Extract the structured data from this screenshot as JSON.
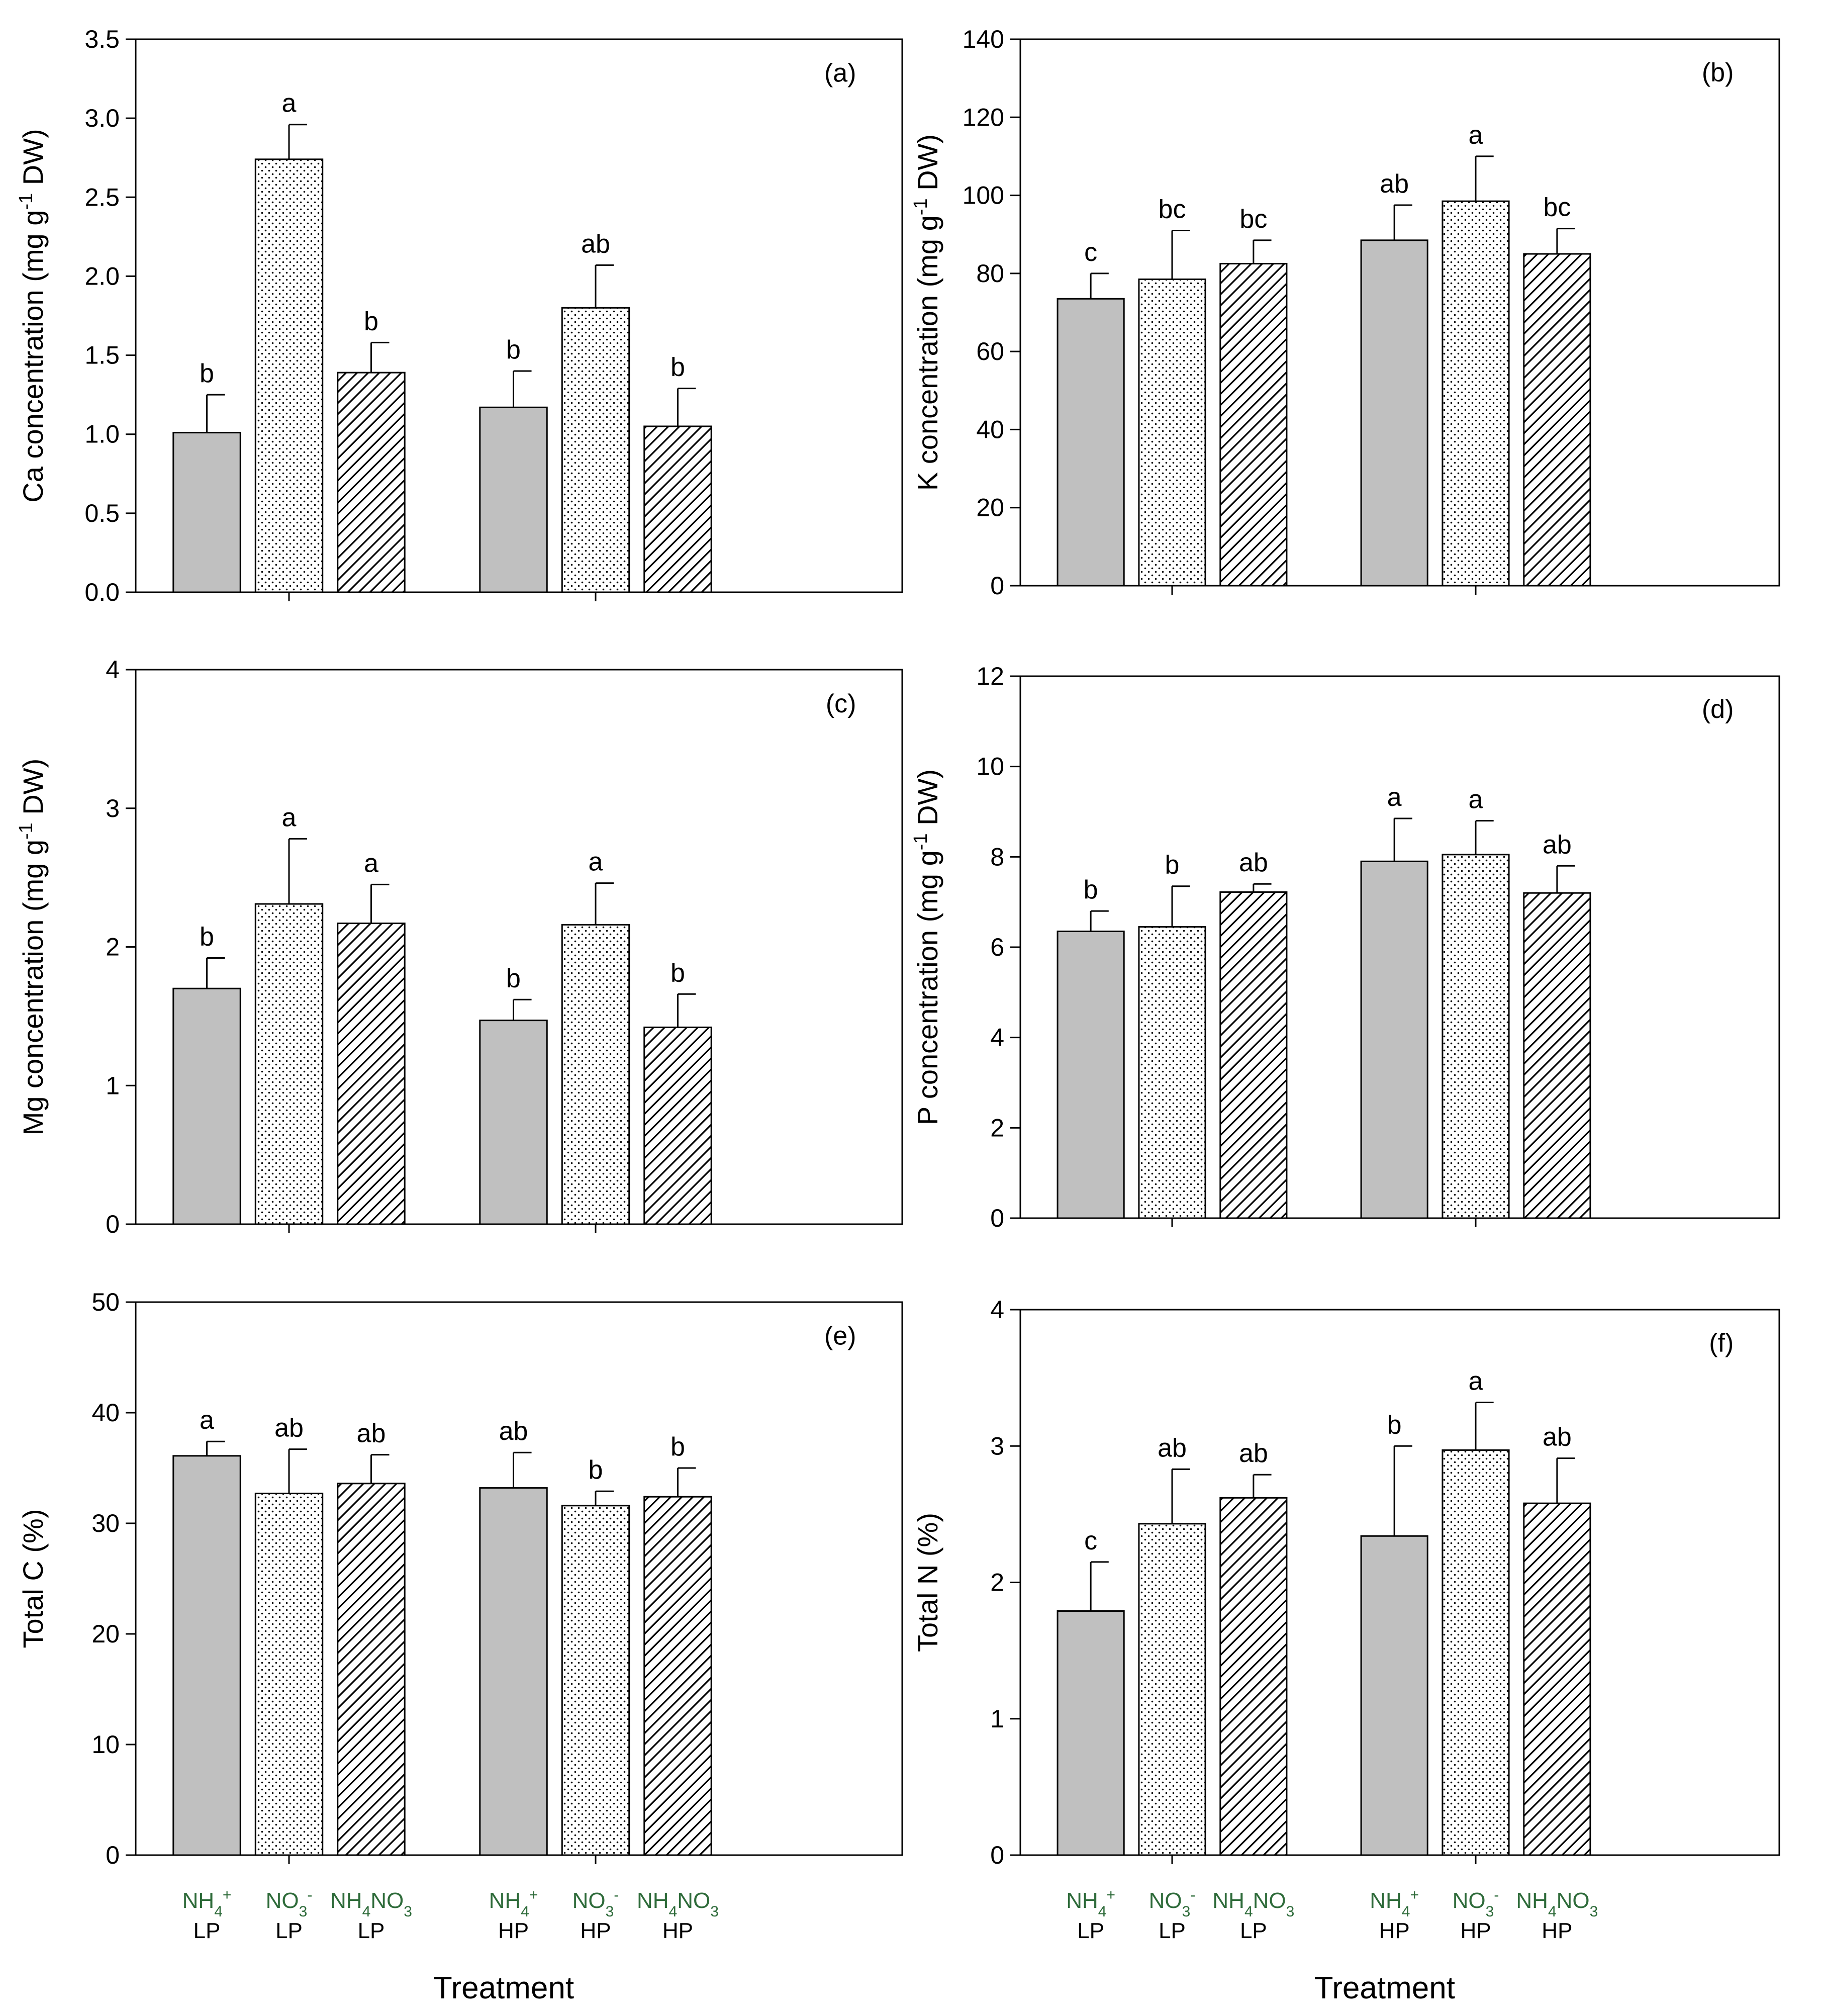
{
  "xlabel": "Treatment",
  "groups": [
    "LP",
    "HP"
  ],
  "treatment_ticks": [
    {
      "ion": "NH",
      "sub": "4",
      "sup": "+",
      "tail": "",
      "tail_sub": "",
      "tail_end": "",
      "level": "LP"
    },
    {
      "ion": "NO",
      "sub": "3",
      "sup": "-",
      "tail": "",
      "tail_sub": "",
      "tail_end": "",
      "level": "LP"
    },
    {
      "ion": "NH",
      "sub": "4",
      "sup": "",
      "tail": "NO",
      "tail_sub": "3",
      "tail_end": "",
      "level": "LP"
    },
    {
      "ion": "NH",
      "sub": "4",
      "sup": "+",
      "tail": "",
      "tail_sub": "",
      "tail_end": "",
      "level": "HP"
    },
    {
      "ion": "NO",
      "sub": "3",
      "sup": "-",
      "tail": "",
      "tail_sub": "",
      "tail_end": "",
      "level": "HP"
    },
    {
      "ion": "NH",
      "sub": "4",
      "sup": "",
      "tail": "NO",
      "tail_sub": "3",
      "tail_end": "",
      "level": "HP"
    }
  ],
  "series_fills": {
    "NH4+": "#c0c0c0",
    "NO3-": "dots",
    "NH4NO3": "hatch"
  },
  "chart_data": [
    {
      "type": "bar",
      "panel": "(a)",
      "ylabel": {
        "pre": "Ca concentration (mg g",
        "sup": "-1",
        "post": " DW)"
      },
      "ylim": [
        0,
        3.5
      ],
      "yticks": [
        0.0,
        0.5,
        1.0,
        1.5,
        2.0,
        2.5,
        3.0,
        3.5
      ],
      "ytick_labels": [
        "0.0",
        "0.5",
        "1.0",
        "1.5",
        "2.0",
        "2.5",
        "3.0",
        "3.5"
      ],
      "categories": [
        "LP",
        "HP"
      ],
      "series": [
        {
          "name": "NH4+",
          "values": [
            1.01,
            1.17
          ],
          "errors": [
            0.24,
            0.23
          ],
          "letters": [
            "b",
            "b"
          ]
        },
        {
          "name": "NO3-",
          "values": [
            2.74,
            1.8
          ],
          "errors": [
            0.22,
            0.27
          ],
          "letters": [
            "a",
            "ab"
          ]
        },
        {
          "name": "NH4NO3",
          "values": [
            1.39,
            1.05
          ],
          "errors": [
            0.19,
            0.24
          ],
          "letters": [
            "b",
            "b"
          ]
        }
      ]
    },
    {
      "type": "bar",
      "panel": "(b)",
      "ylabel": {
        "pre": "K concentration (mg g",
        "sup": "-1",
        "post": " DW)"
      },
      "ylim": [
        0,
        140
      ],
      "yticks": [
        0,
        20,
        40,
        60,
        80,
        100,
        120,
        140
      ],
      "ytick_labels": [
        "0",
        "20",
        "40",
        "60",
        "80",
        "100",
        "120",
        "140"
      ],
      "categories": [
        "LP",
        "HP"
      ],
      "series": [
        {
          "name": "NH4+",
          "values": [
            73.5,
            88.5
          ],
          "errors": [
            6.5,
            9.0
          ],
          "letters": [
            "c",
            "ab"
          ]
        },
        {
          "name": "NO3-",
          "values": [
            78.5,
            98.5
          ],
          "errors": [
            12.5,
            11.5
          ],
          "letters": [
            "bc",
            "a"
          ]
        },
        {
          "name": "NH4NO3",
          "values": [
            82.5,
            85.0
          ],
          "errors": [
            6.0,
            6.5
          ],
          "letters": [
            "bc",
            "bc"
          ]
        }
      ]
    },
    {
      "type": "bar",
      "panel": "(c)",
      "ylabel": {
        "pre": "Mg concentration (mg g",
        "sup": "-1",
        "post": " DW)"
      },
      "ylim": [
        0,
        4
      ],
      "yticks": [
        0,
        1,
        2,
        3,
        4
      ],
      "ytick_labels": [
        "0",
        "1",
        "2",
        "3",
        "4"
      ],
      "categories": [
        "LP",
        "HP"
      ],
      "series": [
        {
          "name": "NH4+",
          "values": [
            1.7,
            1.47
          ],
          "errors": [
            0.22,
            0.15
          ],
          "letters": [
            "b",
            "b"
          ]
        },
        {
          "name": "NO3-",
          "values": [
            2.31,
            2.16
          ],
          "errors": [
            0.47,
            0.3
          ],
          "letters": [
            "a",
            "a"
          ]
        },
        {
          "name": "NH4NO3",
          "values": [
            2.17,
            1.42
          ],
          "errors": [
            0.28,
            0.24
          ],
          "letters": [
            "a",
            "b"
          ]
        }
      ]
    },
    {
      "type": "bar",
      "panel": "(d)",
      "ylabel": {
        "pre": "P concentration (mg g",
        "sup": "-1",
        "post": " DW)"
      },
      "ylim": [
        0,
        12
      ],
      "yticks": [
        0,
        2,
        4,
        6,
        8,
        10,
        12
      ],
      "ytick_labels": [
        "0",
        "2",
        "4",
        "6",
        "8",
        "10",
        "12"
      ],
      "categories": [
        "LP",
        "HP"
      ],
      "series": [
        {
          "name": "NH4+",
          "values": [
            6.35,
            7.9
          ],
          "errors": [
            0.45,
            0.95
          ],
          "letters": [
            "b",
            "a"
          ]
        },
        {
          "name": "NO3-",
          "values": [
            6.45,
            8.05
          ],
          "errors": [
            0.9,
            0.75
          ],
          "letters": [
            "b",
            "a"
          ]
        },
        {
          "name": "NH4NO3",
          "values": [
            7.22,
            7.2
          ],
          "errors": [
            0.18,
            0.6
          ],
          "letters": [
            "ab",
            "ab"
          ]
        }
      ]
    },
    {
      "type": "bar",
      "panel": "(e)",
      "ylabel": {
        "pre": "Total C (%)",
        "sup": "",
        "post": ""
      },
      "ylim": [
        0,
        50
      ],
      "yticks": [
        0,
        10,
        20,
        30,
        40,
        50
      ],
      "ytick_labels": [
        "0",
        "10",
        "20",
        "30",
        "40",
        "50"
      ],
      "categories": [
        "LP",
        "HP"
      ],
      "series": [
        {
          "name": "NH4+",
          "values": [
            36.1,
            33.2
          ],
          "errors": [
            1.3,
            3.2
          ],
          "letters": [
            "a",
            "ab"
          ]
        },
        {
          "name": "NO3-",
          "values": [
            32.7,
            31.6
          ],
          "errors": [
            4.0,
            1.3
          ],
          "letters": [
            "ab",
            "b"
          ]
        },
        {
          "name": "NH4NO3",
          "values": [
            33.6,
            32.4
          ],
          "errors": [
            2.6,
            2.6
          ],
          "letters": [
            "ab",
            "b"
          ]
        }
      ]
    },
    {
      "type": "bar",
      "panel": "(f)",
      "ylabel": {
        "pre": "Total N (%)",
        "sup": "",
        "post": ""
      },
      "ylim": [
        0,
        4
      ],
      "yticks": [
        0,
        1,
        2,
        3,
        4
      ],
      "ytick_labels": [
        "0",
        "1",
        "2",
        "3",
        "4"
      ],
      "categories": [
        "LP",
        "HP"
      ],
      "series": [
        {
          "name": "NH4+",
          "values": [
            1.79,
            2.34
          ],
          "errors": [
            0.36,
            0.66
          ],
          "letters": [
            "c",
            "b"
          ]
        },
        {
          "name": "NO3-",
          "values": [
            2.43,
            2.97
          ],
          "errors": [
            0.4,
            0.35
          ],
          "letters": [
            "ab",
            "a"
          ]
        },
        {
          "name": "NH4NO3",
          "values": [
            2.62,
            2.58
          ],
          "errors": [
            0.17,
            0.33
          ],
          "letters": [
            "ab",
            "ab"
          ]
        }
      ]
    }
  ]
}
